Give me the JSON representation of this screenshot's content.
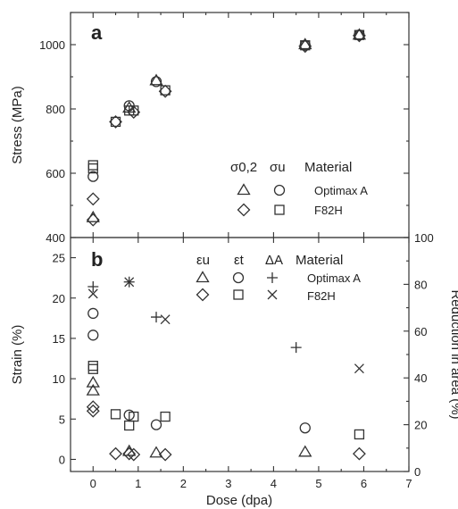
{
  "chart_data": [
    {
      "type": "scatter",
      "panel_label": "a",
      "ylabel": "Stress (MPa)",
      "ylim": [
        400,
        1100
      ],
      "yticks": [
        400,
        600,
        800,
        1000
      ],
      "xlim": [
        -0.5,
        7
      ],
      "legend": {
        "position": "lower-right",
        "column_headers": [
          "σ0,2",
          "σu",
          "Material"
        ],
        "rows": [
          "Optimax A",
          "F82H"
        ]
      },
      "series": [
        {
          "name": "σ0,2 Optimax A",
          "marker": "triangle",
          "points": [
            [
              0,
              462
            ],
            [
              0.8,
              803
            ],
            [
              1.4,
              888
            ],
            [
              4.7,
              1000
            ],
            [
              5.9,
              1030
            ]
          ]
        },
        {
          "name": "σu Optimax A",
          "marker": "circle",
          "points": [
            [
              0,
              590
            ],
            [
              0.8,
              810
            ],
            [
              1.4,
              885
            ],
            [
              4.7,
              998
            ],
            [
              5.9,
              1030
            ]
          ]
        },
        {
          "name": "σ0,2 F82H",
          "marker": "diamond",
          "points": [
            [
              0,
              455
            ],
            [
              0,
              520
            ],
            [
              0.5,
              760
            ],
            [
              0.9,
              790
            ],
            [
              1.6,
              855
            ],
            [
              4.7,
              995
            ],
            [
              5.9,
              1028
            ]
          ]
        },
        {
          "name": "σu F82H",
          "marker": "square",
          "points": [
            [
              0,
              615
            ],
            [
              0,
              625
            ],
            [
              0.5,
              760
            ],
            [
              0.8,
              795
            ],
            [
              0.9,
              795
            ],
            [
              1.6,
              858
            ],
            [
              4.7,
              998
            ],
            [
              5.9,
              1030
            ]
          ]
        }
      ]
    },
    {
      "type": "scatter",
      "panel_label": "b",
      "xlabel": "Dose (dpa)",
      "xlim": [
        -0.5,
        7
      ],
      "xticks": [
        0,
        1,
        2,
        3,
        4,
        5,
        6,
        7
      ],
      "ylabel": "Strain (%)",
      "ylim": [
        -1.5,
        27.5
      ],
      "yticks": [
        0,
        5,
        10,
        15,
        20,
        25
      ],
      "y2label": "Reduction in area (%)",
      "y2lim": [
        0,
        100
      ],
      "y2ticks": [
        0,
        20,
        40,
        60,
        80,
        100
      ],
      "legend": {
        "position": "top-right",
        "column_headers": [
          "εu",
          "εt",
          "ΔA",
          "Material"
        ],
        "rows": [
          "Optimax A",
          "F82H"
        ]
      },
      "series": [
        {
          "name": "εu Optimax A",
          "marker": "triangle",
          "axis": "left",
          "points": [
            [
              0,
              8.5
            ],
            [
              0,
              9.5
            ],
            [
              0.8,
              1.0
            ],
            [
              1.4,
              0.8
            ],
            [
              4.7,
              0.9
            ]
          ]
        },
        {
          "name": "εt Optimax A",
          "marker": "circle",
          "axis": "left",
          "points": [
            [
              0,
              15.4
            ],
            [
              0,
              18.1
            ],
            [
              0.8,
              5.5
            ],
            [
              1.4,
              4.3
            ],
            [
              4.7,
              3.9
            ]
          ]
        },
        {
          "name": "ΔA Optimax A",
          "marker": "plus",
          "axis": "right",
          "points": [
            [
              0,
              79
            ],
            [
              0.8,
              81
            ],
            [
              1.4,
              66
            ],
            [
              4.5,
              53
            ]
          ]
        },
        {
          "name": "εu F82H",
          "marker": "diamond",
          "axis": "left",
          "points": [
            [
              0,
              6.0
            ],
            [
              0,
              6.5
            ],
            [
              0.5,
              0.7
            ],
            [
              0.8,
              0.7
            ],
            [
              0.9,
              0.6
            ],
            [
              1.6,
              0.6
            ],
            [
              5.9,
              0.7
            ]
          ]
        },
        {
          "name": "εt F82H",
          "marker": "square",
          "axis": "left",
          "points": [
            [
              0,
              11.2
            ],
            [
              0,
              11.6
            ],
            [
              0.5,
              5.6
            ],
            [
              0.8,
              4.2
            ],
            [
              0.9,
              5.3
            ],
            [
              1.6,
              5.3
            ],
            [
              5.9,
              3.1
            ]
          ]
        },
        {
          "name": "ΔA F82H",
          "marker": "x",
          "axis": "right",
          "points": [
            [
              0,
              76
            ],
            [
              0.8,
              81
            ],
            [
              1.6,
              65
            ],
            [
              5.9,
              44
            ]
          ]
        }
      ]
    }
  ]
}
